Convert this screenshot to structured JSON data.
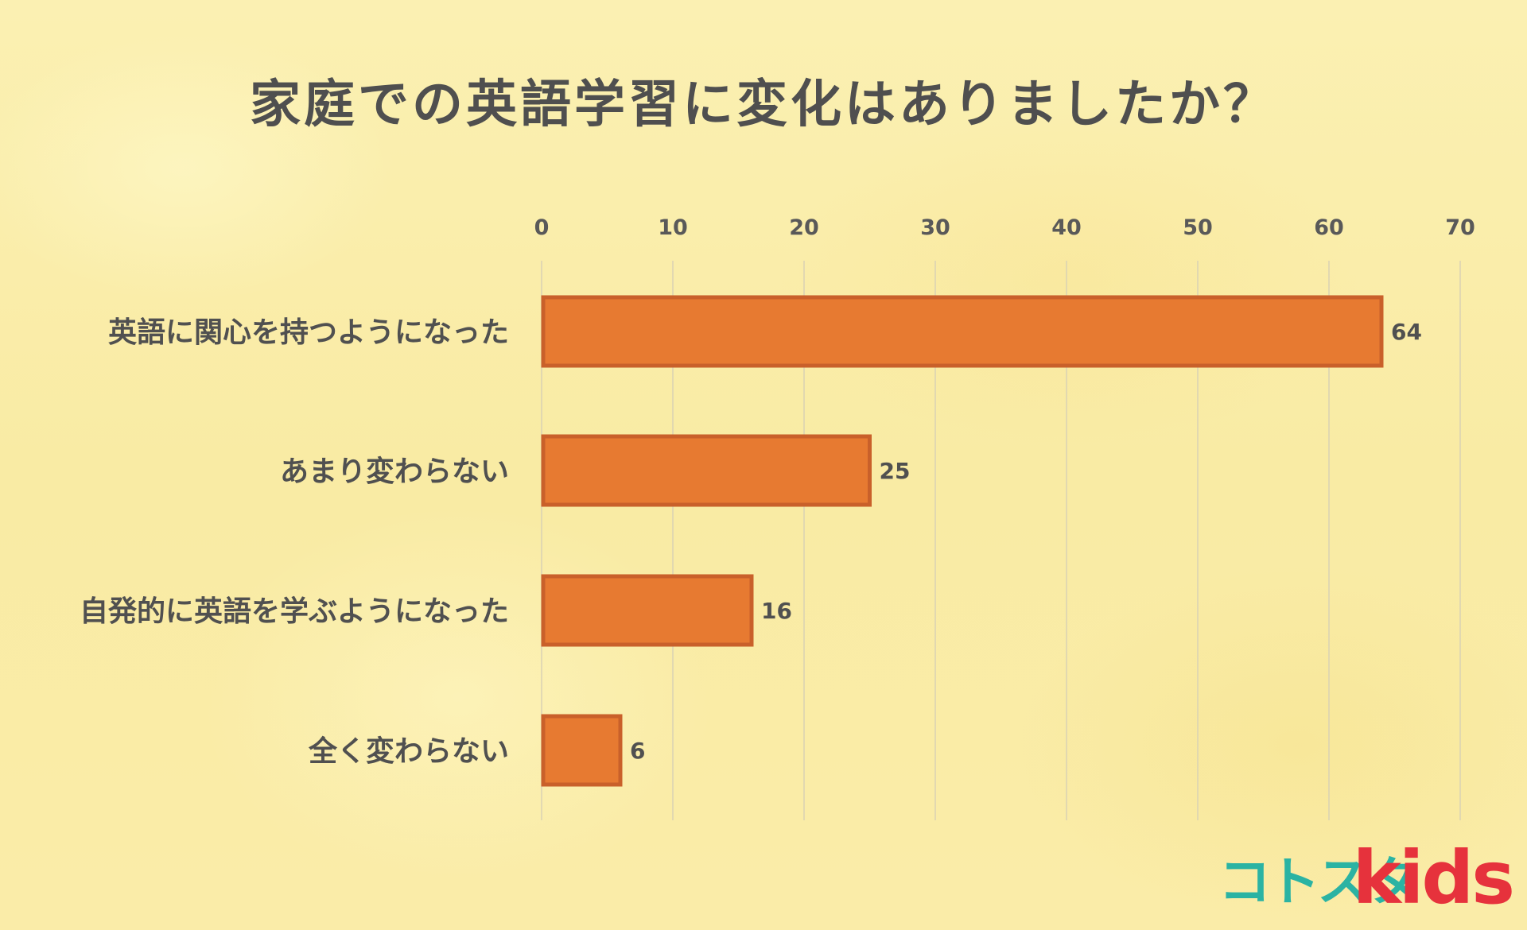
{
  "chart_data": {
    "type": "bar",
    "orientation": "horizontal",
    "title": "家庭での英語学習に変化はありましたか？",
    "categories": [
      "英語に関心を持つようになった",
      "あまり変わらない",
      "自発的に英語を学ぶようになった",
      "全く変わらない"
    ],
    "values": [
      64,
      25,
      16,
      6
    ],
    "xlim": [
      0,
      70
    ],
    "xticks": [
      "0",
      "10",
      "20",
      "30",
      "40",
      "50",
      "60",
      "70"
    ],
    "xticks_position": "top",
    "grid": true,
    "legend": "none",
    "bar_color": "#e77a31",
    "bar_border_color": "#c9602a",
    "grid_color": "#d9d2b4",
    "background_color": "#faeeaa"
  },
  "logo": {
    "main": "コトスタ",
    "suffix": "kids"
  }
}
